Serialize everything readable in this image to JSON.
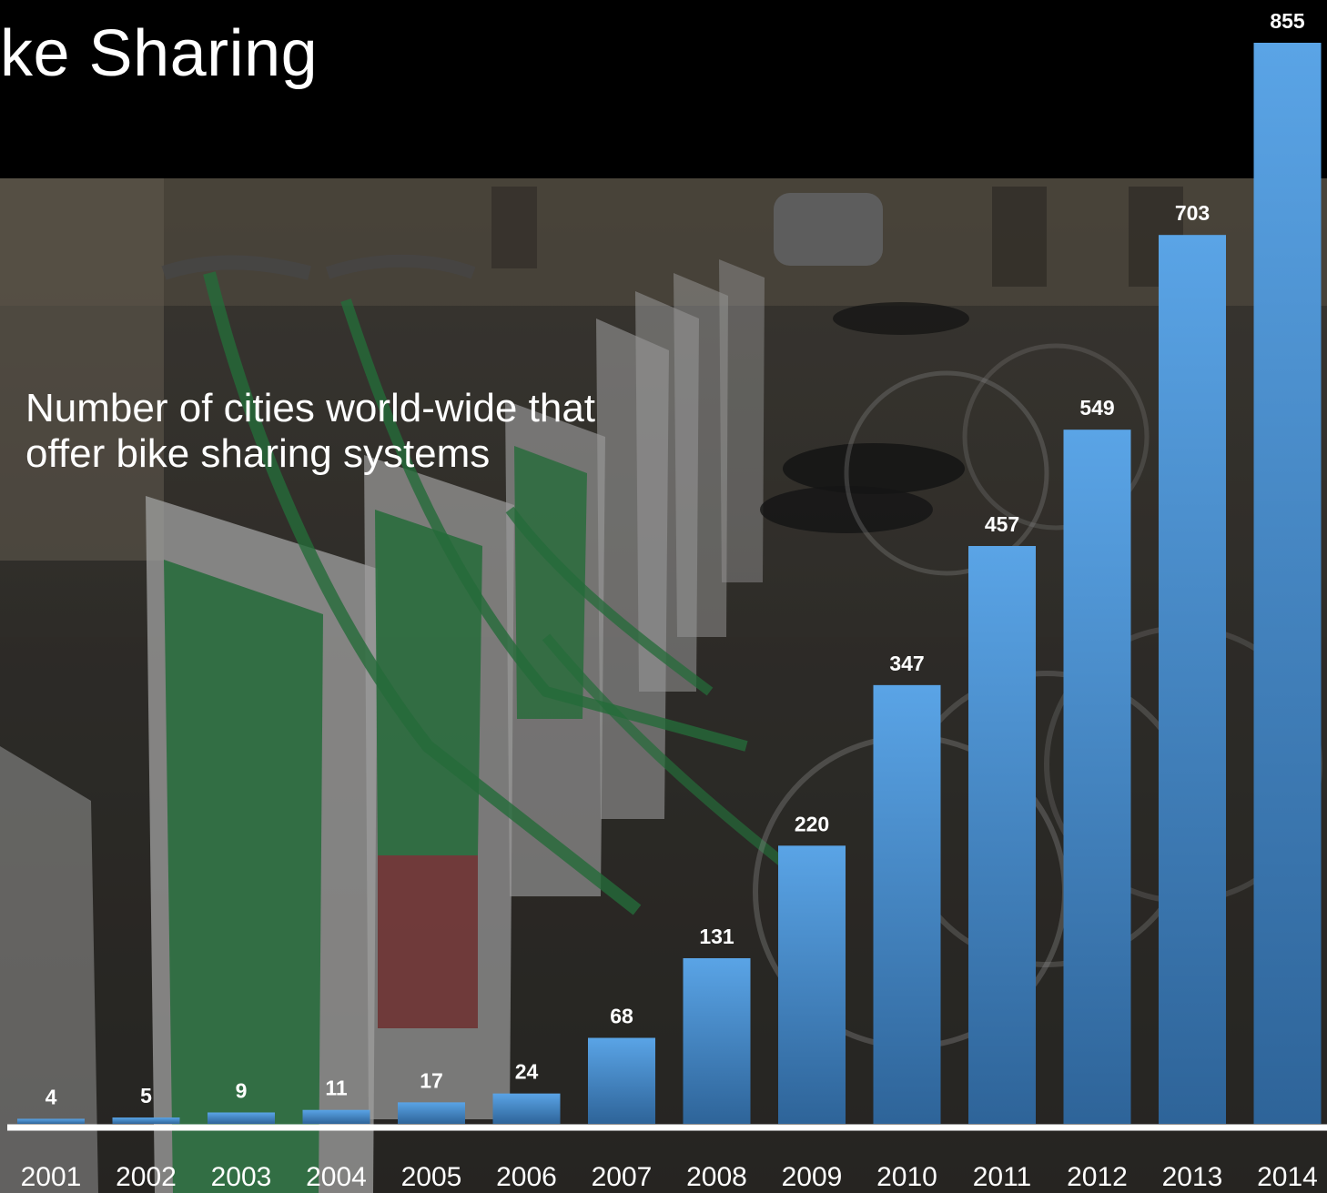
{
  "slide": {
    "title": "ke Sharing",
    "subtitle": "Number of cities world-wide that offer bike sharing systems"
  },
  "chart_data": {
    "type": "bar",
    "title": "",
    "xlabel": "",
    "ylabel": "",
    "categories": [
      "2001",
      "2002",
      "2003",
      "2004",
      "2005",
      "2006",
      "2007",
      "2008",
      "2009",
      "2010",
      "2011",
      "2012",
      "2013",
      "2014"
    ],
    "values": [
      4,
      5,
      9,
      11,
      17,
      24,
      68,
      131,
      220,
      347,
      457,
      549,
      703,
      855
    ],
    "ylim": [
      0,
      855
    ],
    "grid": false,
    "data_labels": true,
    "colors": {
      "bar_top": "#5aa4e6",
      "bar_bottom": "#2e6499",
      "axis": "#ffffff",
      "label": "#ffffff"
    }
  }
}
